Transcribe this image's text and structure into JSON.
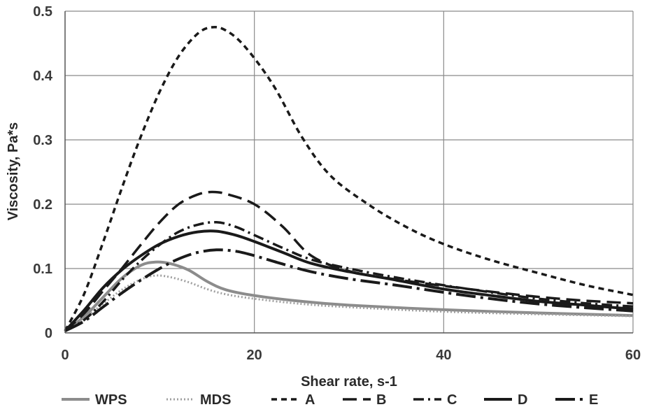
{
  "chart_data": {
    "type": "line",
    "xlabel": "Shear rate, s-1",
    "ylabel": "Viscosity, Pa*s",
    "xlim": [
      0,
      60
    ],
    "ylim": [
      0,
      0.5
    ],
    "x_ticks": [
      0,
      20,
      40,
      60
    ],
    "y_ticks": [
      0,
      0.1,
      0.2,
      0.3,
      0.4,
      0.5
    ],
    "x_tick_labels": [
      "0",
      "20",
      "40",
      "60"
    ],
    "y_tick_labels": [
      "0",
      "0.1",
      "0.2",
      "0.3",
      "0.4",
      "0.5"
    ],
    "grid": true,
    "legend_position": "bottom",
    "series": [
      {
        "name": "WPS",
        "color": "#8c8c8c",
        "style": "solid",
        "points": [
          [
            0,
            0.003
          ],
          [
            2,
            0.025
          ],
          [
            4,
            0.055
          ],
          [
            6,
            0.085
          ],
          [
            8,
            0.105
          ],
          [
            9.5,
            0.11
          ],
          [
            11,
            0.108
          ],
          [
            13,
            0.098
          ],
          [
            15,
            0.08
          ],
          [
            17,
            0.067
          ],
          [
            20,
            0.058
          ],
          [
            25,
            0.049
          ],
          [
            30,
            0.043
          ],
          [
            40,
            0.036
          ],
          [
            50,
            0.031
          ],
          [
            60,
            0.027
          ]
        ]
      },
      {
        "name": "MDS",
        "color": "#a0a0a0",
        "style": "dotted",
        "points": [
          [
            0,
            0.003
          ],
          [
            2,
            0.022
          ],
          [
            4,
            0.045
          ],
          [
            6,
            0.067
          ],
          [
            8,
            0.083
          ],
          [
            9.5,
            0.089
          ],
          [
            11,
            0.087
          ],
          [
            13,
            0.079
          ],
          [
            15,
            0.068
          ],
          [
            17,
            0.06
          ],
          [
            20,
            0.053
          ],
          [
            25,
            0.045
          ],
          [
            30,
            0.04
          ],
          [
            40,
            0.033
          ],
          [
            50,
            0.029
          ],
          [
            60,
            0.026
          ]
        ]
      },
      {
        "name": "A",
        "color": "#1a1a1a",
        "style": "dashed-short",
        "points": [
          [
            0,
            0.003
          ],
          [
            2,
            0.06
          ],
          [
            4,
            0.14
          ],
          [
            6,
            0.225
          ],
          [
            8,
            0.305
          ],
          [
            10,
            0.375
          ],
          [
            12,
            0.43
          ],
          [
            14,
            0.465
          ],
          [
            15.5,
            0.475
          ],
          [
            17,
            0.47
          ],
          [
            19,
            0.445
          ],
          [
            22,
            0.385
          ],
          [
            25,
            0.305
          ],
          [
            28,
            0.245
          ],
          [
            32,
            0.2
          ],
          [
            36,
            0.165
          ],
          [
            40,
            0.138
          ],
          [
            45,
            0.113
          ],
          [
            50,
            0.093
          ],
          [
            55,
            0.074
          ],
          [
            60,
            0.059
          ]
        ]
      },
      {
        "name": "B",
        "color": "#1a1a1a",
        "style": "dashed-long",
        "points": [
          [
            0,
            0.003
          ],
          [
            2,
            0.03
          ],
          [
            4,
            0.065
          ],
          [
            6,
            0.1
          ],
          [
            8,
            0.137
          ],
          [
            10,
            0.172
          ],
          [
            12,
            0.2
          ],
          [
            14,
            0.215
          ],
          [
            15.5,
            0.219
          ],
          [
            17,
            0.216
          ],
          [
            20,
            0.2
          ],
          [
            23,
            0.165
          ],
          [
            26,
            0.12
          ],
          [
            30,
            0.096
          ],
          [
            35,
            0.083
          ],
          [
            40,
            0.073
          ],
          [
            45,
            0.064
          ],
          [
            50,
            0.056
          ],
          [
            55,
            0.05
          ],
          [
            60,
            0.046
          ]
        ]
      },
      {
        "name": "C",
        "color": "#1a1a1a",
        "style": "dash-dot",
        "points": [
          [
            0,
            0.003
          ],
          [
            2,
            0.02
          ],
          [
            4,
            0.048
          ],
          [
            6,
            0.082
          ],
          [
            8,
            0.112
          ],
          [
            10,
            0.137
          ],
          [
            12,
            0.157
          ],
          [
            14,
            0.168
          ],
          [
            16,
            0.172
          ],
          [
            18,
            0.165
          ],
          [
            20,
            0.152
          ],
          [
            23,
            0.132
          ],
          [
            26,
            0.114
          ],
          [
            30,
            0.1
          ],
          [
            35,
            0.086
          ],
          [
            40,
            0.074
          ],
          [
            45,
            0.063
          ],
          [
            50,
            0.053
          ],
          [
            55,
            0.046
          ],
          [
            60,
            0.041
          ]
        ]
      },
      {
        "name": "D",
        "color": "#1a1a1a",
        "style": "solid-thick",
        "points": [
          [
            0,
            0.003
          ],
          [
            2,
            0.035
          ],
          [
            4,
            0.07
          ],
          [
            6,
            0.098
          ],
          [
            8,
            0.12
          ],
          [
            10,
            0.138
          ],
          [
            12,
            0.15
          ],
          [
            14,
            0.157
          ],
          [
            16,
            0.158
          ],
          [
            18,
            0.152
          ],
          [
            20,
            0.142
          ],
          [
            23,
            0.125
          ],
          [
            26,
            0.108
          ],
          [
            30,
            0.095
          ],
          [
            35,
            0.082
          ],
          [
            40,
            0.068
          ],
          [
            45,
            0.058
          ],
          [
            50,
            0.049
          ],
          [
            55,
            0.043
          ],
          [
            60,
            0.037
          ]
        ]
      },
      {
        "name": "E",
        "color": "#1a1a1a",
        "style": "long-dash-dot",
        "points": [
          [
            0,
            0.003
          ],
          [
            2,
            0.018
          ],
          [
            4,
            0.04
          ],
          [
            6,
            0.062
          ],
          [
            8,
            0.082
          ],
          [
            10,
            0.1
          ],
          [
            12,
            0.115
          ],
          [
            14,
            0.125
          ],
          [
            16,
            0.129
          ],
          [
            18,
            0.127
          ],
          [
            20,
            0.12
          ],
          [
            23,
            0.107
          ],
          [
            26,
            0.095
          ],
          [
            30,
            0.084
          ],
          [
            35,
            0.074
          ],
          [
            40,
            0.063
          ],
          [
            45,
            0.053
          ],
          [
            50,
            0.045
          ],
          [
            55,
            0.039
          ],
          [
            60,
            0.034
          ]
        ]
      }
    ]
  }
}
